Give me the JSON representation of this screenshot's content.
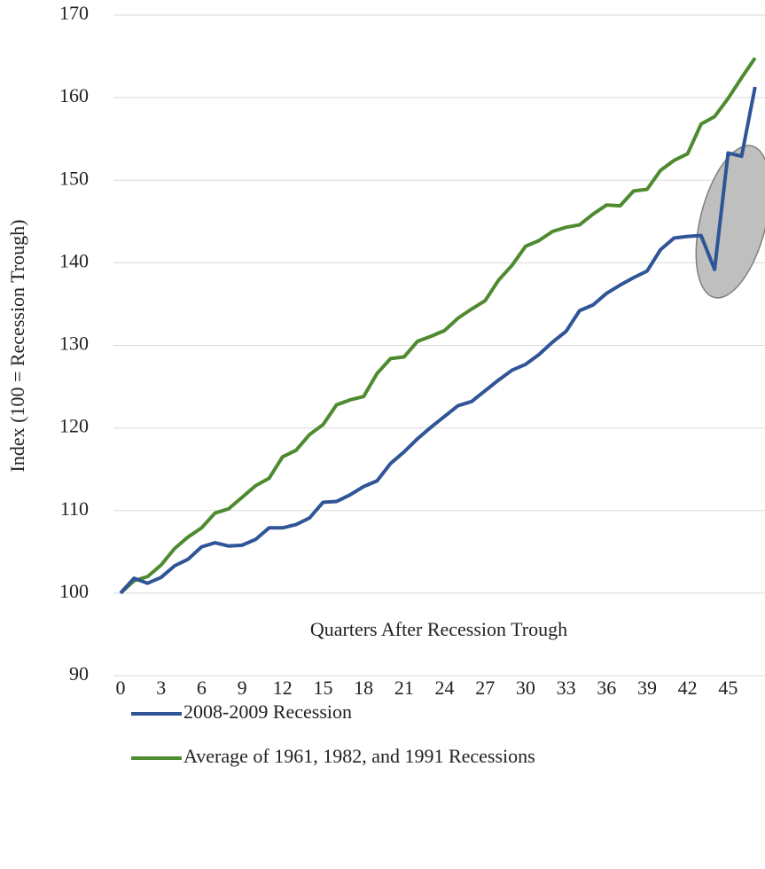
{
  "chart_data": {
    "type": "line",
    "y_label": "Index (100 =  Recession Trough)",
    "x_label": "Quarters After Recession Trough",
    "categories": [
      "0",
      null,
      null,
      "3",
      null,
      null,
      "6",
      null,
      null,
      "9",
      null,
      null,
      "12",
      null,
      null,
      "15",
      null,
      null,
      "18",
      null,
      null,
      "21",
      null,
      null,
      "24",
      null,
      null,
      "27",
      null,
      null,
      "30",
      null,
      null,
      "33",
      null,
      null,
      "36",
      null,
      null,
      "39",
      null,
      null,
      "42",
      null,
      null,
      "45",
      null,
      null
    ],
    "series": [
      {
        "name": "2008-2009 Recession",
        "color": "#2f5597",
        "values": [
          100,
          101.8,
          101.2,
          101.9,
          103.3,
          104.1,
          105.6,
          106.1,
          105.7,
          105.8,
          106.5,
          107.9,
          107.9,
          108.3,
          109.1,
          111.0,
          111.1,
          111.9,
          112.9,
          113.6,
          115.7,
          117.1,
          118.7,
          120.1,
          121.4,
          122.7,
          123.2,
          124.5,
          125.8,
          127.0,
          127.7,
          128.9,
          130.4,
          131.7,
          134.2,
          134.9,
          136.3,
          137.3,
          138.2,
          139.0,
          141.6,
          143.0,
          143.2,
          143.3,
          139.2,
          153.3,
          152.9,
          161.3
        ]
      },
      {
        "name": "Average of 1961, 1982, and 1991 Recessions",
        "color": "#4e8a2f",
        "values": [
          100,
          101.5,
          102.0,
          103.4,
          105.4,
          106.8,
          107.9,
          109.7,
          110.2,
          111.6,
          113.0,
          113.9,
          116.5,
          117.3,
          119.2,
          120.4,
          122.8,
          123.4,
          123.8,
          126.6,
          128.4,
          128.6,
          130.5,
          131.1,
          131.8,
          133.3,
          134.4,
          135.4,
          137.9,
          139.7,
          142.0,
          142.7,
          143.8,
          144.3,
          144.6,
          145.9,
          147.0,
          146.9,
          148.7,
          148.9,
          151.2,
          152.4,
          153.2,
          156.8,
          157.7,
          159.9,
          162.4,
          164.8
        ]
      }
    ],
    "ylim": [
      90,
      170
    ],
    "yticks": [
      90,
      100,
      110,
      120,
      130,
      140,
      150,
      160,
      170
    ],
    "grid": true
  }
}
